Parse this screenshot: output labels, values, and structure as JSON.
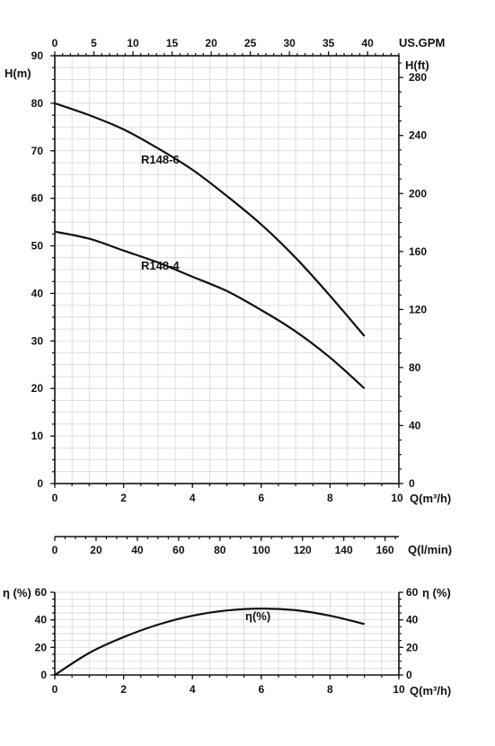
{
  "chart_data": [
    {
      "type": "line",
      "title": "",
      "xlabel": "Q(m³/h)",
      "ylabel": "H(m)",
      "top_axis_label": "US.GPM",
      "right_axis_label": "H(ft)",
      "xlim": [
        0,
        10
      ],
      "ylim": [
        0,
        90
      ],
      "top_xlim": [
        0,
        44
      ],
      "right_ylim": [
        0,
        295
      ],
      "x_ticks": [
        "0",
        "2",
        "4",
        "6",
        "8",
        "10"
      ],
      "y_ticks": [
        "0",
        "10",
        "20",
        "30",
        "40",
        "50",
        "60",
        "70",
        "80",
        "90"
      ],
      "top_ticks": [
        "0",
        "5",
        "10",
        "15",
        "20",
        "25",
        "30",
        "35",
        "40"
      ],
      "right_ticks": [
        "0",
        "40",
        "80",
        "120",
        "160",
        "200",
        "240",
        "280"
      ],
      "grid": true,
      "series": [
        {
          "name": "R148-6",
          "x": [
            0,
            1,
            2,
            3,
            4,
            5,
            6,
            7,
            8,
            9
          ],
          "y": [
            80,
            77.5,
            74.5,
            70.5,
            66,
            60.5,
            54.5,
            47.5,
            39.5,
            31
          ]
        },
        {
          "name": "R148-4",
          "x": [
            0,
            1,
            2,
            3,
            4,
            5,
            6,
            7,
            8,
            9
          ],
          "y": [
            53,
            51.5,
            49,
            46.5,
            43.5,
            40.5,
            36.5,
            32,
            26.5,
            20
          ]
        }
      ]
    },
    {
      "type": "axis",
      "xlabel": "Q(l/min)",
      "xlim": [
        0,
        166.7
      ],
      "x_ticks": [
        "0",
        "20",
        "40",
        "60",
        "80",
        "100",
        "120",
        "140",
        "160"
      ]
    },
    {
      "type": "line",
      "xlabel": "Q(m³/h)",
      "ylabel": "η (%)",
      "right_axis_label": "η (%)",
      "xlim": [
        0,
        10
      ],
      "ylim": [
        0,
        60
      ],
      "x_ticks": [
        "0",
        "2",
        "4",
        "6",
        "8",
        "10"
      ],
      "y_ticks": [
        "0",
        "20",
        "40",
        "60"
      ],
      "grid": true,
      "series": [
        {
          "name": "η(%)",
          "x": [
            0,
            1,
            2,
            3,
            4,
            5,
            6,
            7,
            8,
            9
          ],
          "y": [
            0,
            16,
            27.5,
            36.5,
            43,
            46.8,
            48.2,
            47,
            43,
            37
          ]
        }
      ]
    }
  ]
}
